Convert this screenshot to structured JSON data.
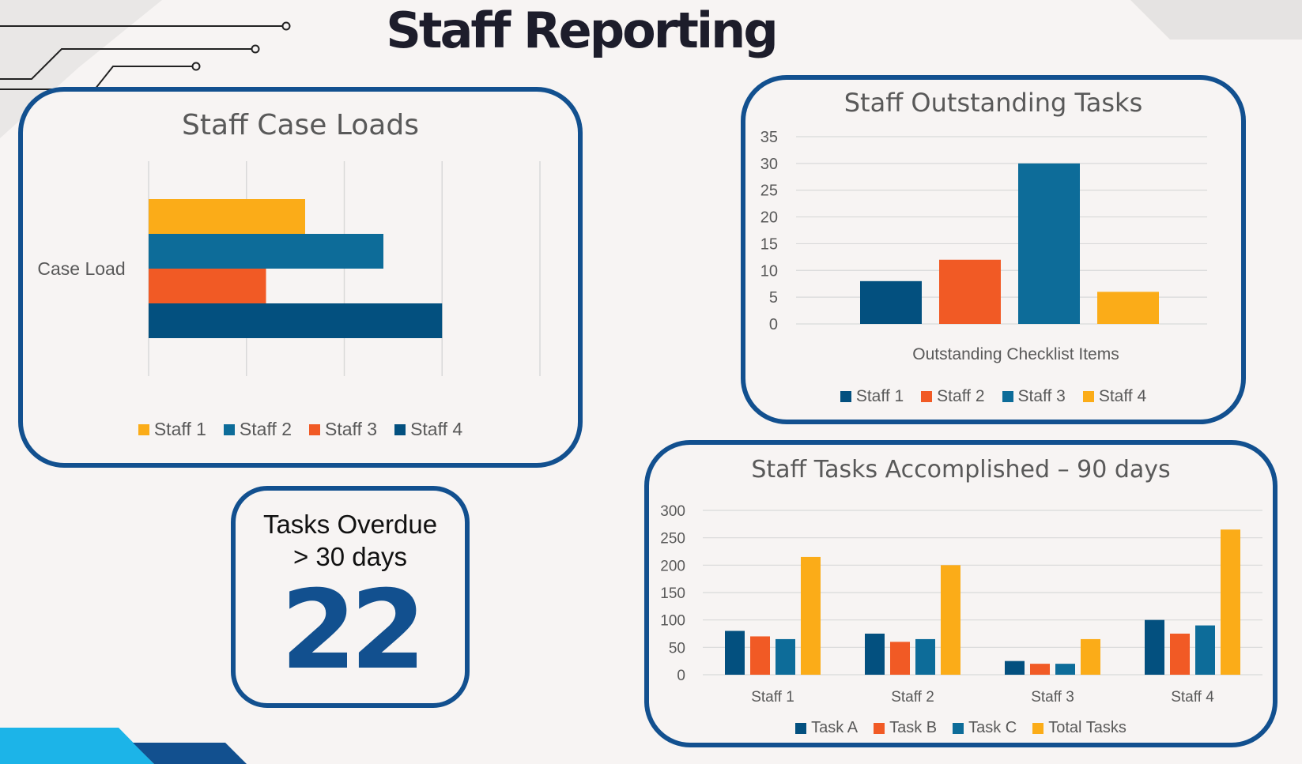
{
  "page": {
    "title": "Staff Reporting"
  },
  "colors": {
    "staff1": "#fbac18",
    "staff2": "#0d6c99",
    "staff3": "#f15a25",
    "staff4": "#03507f",
    "border": "#12508f"
  },
  "kpi": {
    "label_line1": "Tasks Overdue",
    "label_line2": "> 30 days",
    "value": "22"
  },
  "chart_data": [
    {
      "id": "caseload",
      "type": "bar",
      "orientation": "horizontal",
      "title": "Staff Case Loads",
      "categories": [
        "Case Load"
      ],
      "series": [
        {
          "name": "Staff 1",
          "values": [
            16
          ],
          "color": "#fbac18"
        },
        {
          "name": "Staff 2",
          "values": [
            24
          ],
          "color": "#0d6c99"
        },
        {
          "name": "Staff 3",
          "values": [
            12
          ],
          "color": "#f15a25"
        },
        {
          "name": "Staff 4",
          "values": [
            30
          ],
          "color": "#03507f"
        }
      ],
      "xlim": [
        0,
        40
      ],
      "grid": true,
      "legend": "bottom"
    },
    {
      "id": "outstanding",
      "type": "bar",
      "title": "Staff Outstanding Tasks",
      "xlabel": "Outstanding Checklist Items",
      "categories": [
        "Outstanding Checklist Items"
      ],
      "series": [
        {
          "name": "Staff 1",
          "values": [
            8
          ],
          "color": "#03507f"
        },
        {
          "name": "Staff 2",
          "values": [
            12
          ],
          "color": "#f15a25"
        },
        {
          "name": "Staff 3",
          "values": [
            30
          ],
          "color": "#0d6c99"
        },
        {
          "name": "Staff 4",
          "values": [
            6
          ],
          "color": "#fbac18"
        }
      ],
      "yticks": [
        0,
        5,
        10,
        15,
        20,
        25,
        30,
        35
      ],
      "ylim": [
        0,
        35
      ],
      "grid": true,
      "legend": "bottom"
    },
    {
      "id": "accomplished",
      "type": "bar",
      "title": "Staff Tasks Accomplished – 90 days",
      "categories": [
        "Staff 1",
        "Staff 2",
        "Staff 3",
        "Staff 4"
      ],
      "series": [
        {
          "name": "Task A",
          "values": [
            80,
            75,
            25,
            100
          ],
          "color": "#03507f"
        },
        {
          "name": "Task B",
          "values": [
            70,
            60,
            20,
            75
          ],
          "color": "#f15a25"
        },
        {
          "name": "Task C",
          "values": [
            65,
            65,
            20,
            90
          ],
          "color": "#0d6c99"
        },
        {
          "name": "Total Tasks",
          "values": [
            215,
            200,
            65,
            265
          ],
          "color": "#fbac18"
        }
      ],
      "yticks": [
        0,
        50,
        100,
        150,
        200,
        250,
        300
      ],
      "ylim": [
        0,
        300
      ],
      "grid": true,
      "legend": "bottom"
    }
  ]
}
